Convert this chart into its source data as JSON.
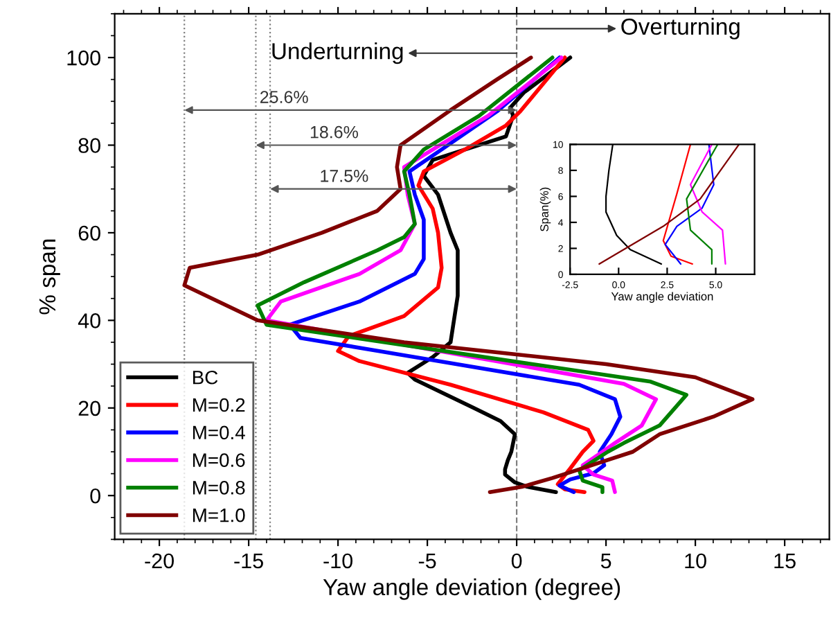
{
  "chart_data": [
    {
      "type": "line",
      "xlabel": "Yaw angle deviation (degree)",
      "ylabel": "% span",
      "xlim": [
        -22.5,
        17.5
      ],
      "ylim": [
        -10,
        110
      ],
      "xticks": [
        -20,
        -15,
        -10,
        -5,
        0,
        5,
        10,
        15
      ],
      "yticks": [
        0,
        20,
        40,
        60,
        80,
        100
      ],
      "legend": "bottom left",
      "grid": false,
      "marker": "none",
      "line_style": "solid",
      "series": [
        {
          "name": "BC",
          "color": "#000000",
          "x": [
            2.2,
            0.6,
            -0.1,
            -0.65,
            -0.65,
            -0.5,
            -0.3,
            -0.1,
            -0.9,
            -2.4,
            -5.7,
            -6.1,
            -4.7,
            -3.7,
            -3.3,
            -3.3,
            -3.3,
            -3.7,
            -4.4,
            -5.2,
            -4.7,
            -2.9,
            -0.6,
            -0.2,
            -0.35,
            0.4,
            3.0
          ],
          "values": [
            0.8,
            2,
            3,
            4.8,
            6,
            8,
            10,
            14,
            17,
            20,
            26.5,
            28,
            31.6,
            35,
            45.6,
            50,
            56,
            60,
            68.7,
            73,
            76.6,
            79,
            82,
            86.7,
            88.6,
            92,
            100
          ]
        },
        {
          "name": "M=0.2",
          "color": "#ff0000",
          "x": [
            3.8,
            2.7,
            2.3,
            3.0,
            3.7,
            4.3,
            4.0,
            1.5,
            -3.7,
            -8.8,
            -10,
            -9.4,
            -6.3,
            -4.4,
            -4.2,
            -4.4,
            -4.7,
            -5.5,
            -5.2,
            -2.9,
            -0.6,
            0.2,
            2.7
          ],
          "values": [
            0.8,
            1.4,
            2.6,
            6.2,
            10,
            12.5,
            15,
            19,
            25.3,
            30.7,
            33,
            36.4,
            41,
            47.5,
            52,
            60,
            65.5,
            70.8,
            74,
            79,
            84.5,
            87.7,
            100
          ]
        },
        {
          "name": "M=0.4",
          "color": "#0000ff",
          "x": [
            3.2,
            2.4,
            3.0,
            4.3,
            4.9,
            4.65,
            5.3,
            5.8,
            5.5,
            3.5,
            -12.1,
            -12.7,
            -8.8,
            -5.7,
            -5.2,
            -5.2,
            -5.7,
            -6.0,
            -4.2,
            -1.1,
            2.4
          ],
          "values": [
            0.8,
            2.3,
            3.7,
            5.1,
            6.9,
            10,
            14,
            18,
            22,
            25.3,
            36,
            39,
            44.3,
            50.6,
            54,
            63,
            68.7,
            74,
            79,
            87.7,
            100
          ]
        },
        {
          "name": "M=0.6",
          "color": "#ff00ff",
          "x": [
            5.5,
            5.35,
            4.3,
            3.7,
            4.8,
            5.5,
            7.0,
            7.8,
            6.0,
            -14,
            -13.2,
            -8.8,
            -6.5,
            -5.7,
            -6.1,
            -6.3,
            -4.7,
            -1.6,
            2.5
          ],
          "values": [
            0.8,
            3.4,
            4.8,
            6.9,
            10,
            12,
            16,
            22,
            25.5,
            40,
            44.3,
            50.6,
            56,
            62,
            68.7,
            75,
            79,
            86.7,
            100
          ]
        },
        {
          "name": "M=0.8",
          "color": "#008000",
          "x": [
            4.8,
            4.8,
            3.7,
            3.5,
            5.1,
            6.0,
            8.0,
            9.5,
            7.5,
            -14,
            -14.5,
            -11.9,
            -7.8,
            -6.3,
            -5.7,
            -6.0,
            -6.3,
            -5.2,
            -2.1,
            2.0
          ],
          "values": [
            0.8,
            1.9,
            3.4,
            5.8,
            10,
            12,
            16,
            23,
            26,
            39,
            43.4,
            48.7,
            56,
            59,
            62,
            68.7,
            74,
            79,
            86.7,
            100
          ]
        },
        {
          "name": "M=1.0",
          "color": "#800000",
          "x": [
            -1.5,
            0.3,
            2.0,
            3.5,
            5.0,
            6.5,
            8.0,
            11.0,
            13.2,
            10.0,
            5.0,
            -6.3,
            -14.5,
            -18.6,
            -18.3,
            -14.5,
            -10.9,
            -7.8,
            -6.5,
            -6.7,
            -6.5,
            -3.7,
            -1.1,
            0.8
          ],
          "values": [
            0.8,
            2,
            4,
            6,
            8,
            10,
            14,
            18,
            22,
            27,
            30,
            35,
            40,
            48,
            52,
            55,
            60,
            65,
            70,
            75,
            80,
            88,
            95,
            100
          ]
        }
      ],
      "ref_lines": [
        {
          "axis": "x",
          "value": 0,
          "line_style": "dashed",
          "color": "#808080"
        },
        {
          "axis": "x",
          "value": -18.6,
          "line_style": "dotted",
          "color": "#808080"
        },
        {
          "axis": "x",
          "value": -14.6,
          "line_style": "dotted",
          "color": "#808080"
        },
        {
          "axis": "x",
          "value": -13.8,
          "line_style": "dotted",
          "color": "#808080"
        }
      ],
      "annotations": [
        "Underturning",
        "Overturning",
        "25.6%",
        "18.6%",
        "17.5%"
      ]
    },
    {
      "type": "line",
      "xlabel": "Yaw angle deviation",
      "ylabel": "Span(%)",
      "xlim": [
        -2.5,
        7
      ],
      "ylim": [
        0,
        10
      ],
      "xticks": [
        {
          "value": -2.5,
          "label": "-2.5"
        },
        {
          "value": 0,
          "label": "0.0"
        },
        {
          "value": 2.5,
          "label": "2.5"
        },
        {
          "value": 5,
          "label": "5.0"
        }
      ],
      "yticks": [
        0,
        2,
        4,
        6,
        8,
        10
      ],
      "grid": false,
      "marker": "none",
      "line_style": "solid",
      "series": [
        {
          "color": "#000000",
          "x": [
            2.2,
            0.6,
            -0.1,
            -0.65,
            -0.65,
            -0.5,
            -0.3
          ],
          "values": [
            0.8,
            1.9,
            3,
            4.8,
            6,
            8,
            10
          ]
        },
        {
          "color": "#ff0000",
          "x": [
            3.8,
            2.7,
            2.3,
            3.0,
            3.7
          ],
          "values": [
            0.8,
            1.4,
            2.6,
            6.2,
            10
          ]
        },
        {
          "color": "#0000ff",
          "x": [
            3.2,
            2.4,
            3.0,
            4.3,
            4.9,
            4.65
          ],
          "values": [
            0.8,
            2.3,
            3.7,
            5.1,
            6.9,
            10
          ]
        },
        {
          "color": "#ff00ff",
          "x": [
            5.5,
            5.35,
            4.3,
            3.7,
            4.8
          ],
          "values": [
            0.8,
            3.4,
            4.8,
            6.9,
            10
          ]
        },
        {
          "color": "#008000",
          "x": [
            4.8,
            4.8,
            3.7,
            3.5,
            5.1
          ],
          "values": [
            0.8,
            1.9,
            3.4,
            5.8,
            10
          ]
        },
        {
          "color": "#800000",
          "x": [
            -1.0,
            2.3,
            4.2,
            6.2
          ],
          "values": [
            0.8,
            3.7,
            5.8,
            10
          ]
        }
      ]
    }
  ]
}
